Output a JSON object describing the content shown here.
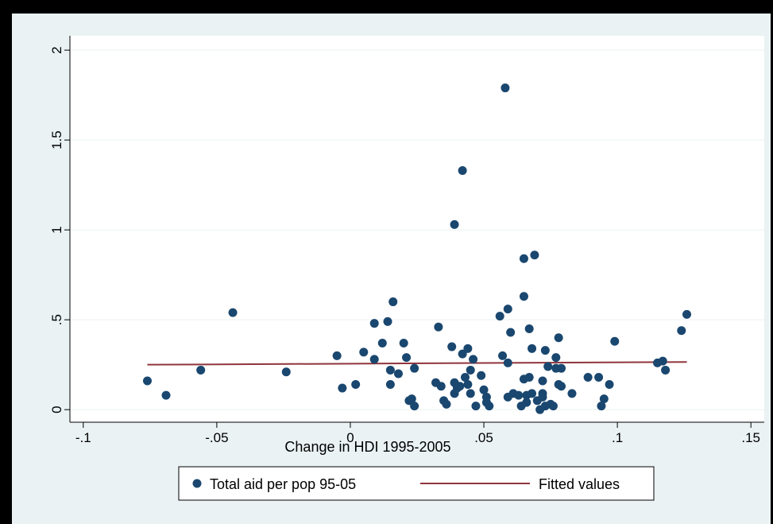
{
  "chart_data": {
    "type": "scatter",
    "title": "",
    "xlabel": "Change in HDI 1995-2005",
    "ylabel": "",
    "xlim": [
      -0.105,
      0.155
    ],
    "ylim": [
      -0.07,
      2.08
    ],
    "x_ticks": [
      -0.1,
      -0.05,
      0,
      0.05,
      0.1,
      0.15
    ],
    "x_tick_labels": [
      "-.1",
      "-.05",
      "0",
      ".05",
      ".1",
      ".15"
    ],
    "y_ticks": [
      0,
      0.5,
      1,
      1.5,
      2
    ],
    "y_tick_labels": [
      "0",
      ".5",
      "1",
      "1.5",
      "2"
    ],
    "grid": "horizontal",
    "legend_position": "bottom",
    "colors": {
      "plot_background": "#ffffff",
      "outer_background": "#eaf2f3",
      "points": "#1a476f",
      "fitted_line": "#90353b",
      "grid": "#eaf2f3"
    },
    "series": [
      {
        "name": "Total aid per pop 95-05",
        "kind": "scatter",
        "points": [
          [
            -0.076,
            0.16
          ],
          [
            -0.069,
            0.08
          ],
          [
            -0.056,
            0.22
          ],
          [
            -0.044,
            0.54
          ],
          [
            -0.024,
            0.21
          ],
          [
            -0.005,
            0.3
          ],
          [
            -0.003,
            0.12
          ],
          [
            0.002,
            0.14
          ],
          [
            0.005,
            0.32
          ],
          [
            0.009,
            0.48
          ],
          [
            0.009,
            0.28
          ],
          [
            0.012,
            0.37
          ],
          [
            0.014,
            0.49
          ],
          [
            0.015,
            0.22
          ],
          [
            0.015,
            0.14
          ],
          [
            0.016,
            0.6
          ],
          [
            0.018,
            0.2
          ],
          [
            0.02,
            0.37
          ],
          [
            0.021,
            0.29
          ],
          [
            0.022,
            0.05
          ],
          [
            0.023,
            0.06
          ],
          [
            0.024,
            0.23
          ],
          [
            0.024,
            0.02
          ],
          [
            0.032,
            0.15
          ],
          [
            0.033,
            0.46
          ],
          [
            0.034,
            0.13
          ],
          [
            0.035,
            0.05
          ],
          [
            0.036,
            0.03
          ],
          [
            0.038,
            0.35
          ],
          [
            0.039,
            1.03
          ],
          [
            0.039,
            0.15
          ],
          [
            0.039,
            0.09
          ],
          [
            0.04,
            0.12
          ],
          [
            0.041,
            0.13
          ],
          [
            0.042,
            0.31
          ],
          [
            0.042,
            1.33
          ],
          [
            0.043,
            0.18
          ],
          [
            0.044,
            0.34
          ],
          [
            0.044,
            0.14
          ],
          [
            0.045,
            0.22
          ],
          [
            0.045,
            0.09
          ],
          [
            0.046,
            0.28
          ],
          [
            0.047,
            0.02
          ],
          [
            0.049,
            0.19
          ],
          [
            0.05,
            0.11
          ],
          [
            0.051,
            0.07
          ],
          [
            0.051,
            0.04
          ],
          [
            0.052,
            0.02
          ],
          [
            0.056,
            0.52
          ],
          [
            0.057,
            0.3
          ],
          [
            0.058,
            1.79
          ],
          [
            0.059,
            0.56
          ],
          [
            0.059,
            0.26
          ],
          [
            0.059,
            0.07
          ],
          [
            0.06,
            0.43
          ],
          [
            0.061,
            0.09
          ],
          [
            0.063,
            0.08
          ],
          [
            0.064,
            0.02
          ],
          [
            0.065,
            0.63
          ],
          [
            0.065,
            0.84
          ],
          [
            0.065,
            0.17
          ],
          [
            0.066,
            0.08
          ],
          [
            0.066,
            0.04
          ],
          [
            0.067,
            0.45
          ],
          [
            0.067,
            0.18
          ],
          [
            0.068,
            0.34
          ],
          [
            0.068,
            0.09
          ],
          [
            0.069,
            0.86
          ],
          [
            0.07,
            0.05
          ],
          [
            0.071,
            0.0
          ],
          [
            0.072,
            0.16
          ],
          [
            0.072,
            0.09
          ],
          [
            0.072,
            0.07
          ],
          [
            0.073,
            0.33
          ],
          [
            0.073,
            0.02
          ],
          [
            0.074,
            0.24
          ],
          [
            0.075,
            0.03
          ],
          [
            0.076,
            0.02
          ],
          [
            0.077,
            0.29
          ],
          [
            0.077,
            0.23
          ],
          [
            0.078,
            0.4
          ],
          [
            0.078,
            0.14
          ],
          [
            0.079,
            0.23
          ],
          [
            0.079,
            0.13
          ],
          [
            0.083,
            0.09
          ],
          [
            0.089,
            0.18
          ],
          [
            0.093,
            0.18
          ],
          [
            0.094,
            0.02
          ],
          [
            0.095,
            0.06
          ],
          [
            0.097,
            0.14
          ],
          [
            0.099,
            0.38
          ],
          [
            0.115,
            0.26
          ],
          [
            0.117,
            0.27
          ],
          [
            0.118,
            0.22
          ],
          [
            0.124,
            0.44
          ],
          [
            0.126,
            0.53
          ]
        ]
      },
      {
        "name": "Fitted values",
        "kind": "line",
        "points": [
          [
            -0.076,
            0.25
          ],
          [
            0.126,
            0.265
          ]
        ]
      }
    ]
  }
}
